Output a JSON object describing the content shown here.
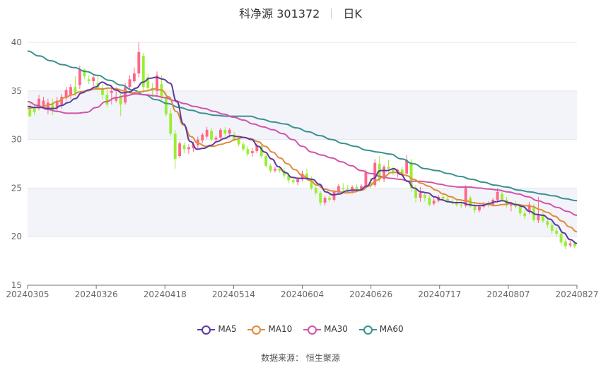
{
  "header": {
    "stock": "科净源 301372",
    "period": "日K"
  },
  "source": "数据来源： 恒生聚源",
  "colors": {
    "up": "#ff6688",
    "down": "#99ee33",
    "ma5": "#5c3b9e",
    "ma10": "#e08a3c",
    "ma30": "#d055a8",
    "ma60": "#3a9190",
    "band": "#f3f4fa",
    "grid": "#e4e6ee"
  },
  "chart_data": {
    "type": "candlestick",
    "ylim": [
      15,
      40
    ],
    "yticks": [
      "40",
      "35",
      "30",
      "25",
      "20",
      "15"
    ],
    "xlabels": [
      "20240305",
      "20240326",
      "20240418",
      "20240514",
      "20240604",
      "20240626",
      "20240717",
      "20240807",
      "20240827"
    ],
    "legend": [
      "MA5",
      "MA10",
      "MA30",
      "MA60"
    ],
    "grid": true,
    "candles_ohlc": [
      [
        33.1,
        33.8,
        32.3,
        32.4
      ],
      [
        33.2,
        33.6,
        32.5,
        32.8
      ],
      [
        33.4,
        34.6,
        33.0,
        34.2
      ],
      [
        33.5,
        34.4,
        33.2,
        34.0
      ],
      [
        33.2,
        34.2,
        32.6,
        33.8
      ],
      [
        33.6,
        34.2,
        32.5,
        33.0
      ],
      [
        33.3,
        34.4,
        32.8,
        34.0
      ],
      [
        33.6,
        34.7,
        33.2,
        34.4
      ],
      [
        34.3,
        35.4,
        34.0,
        35.1
      ],
      [
        34.6,
        35.7,
        34.2,
        35.4
      ],
      [
        35.4,
        36.5,
        34.5,
        34.8
      ],
      [
        35.6,
        37.6,
        35.2,
        37.2
      ],
      [
        37.2,
        37.3,
        36.2,
        36.5
      ],
      [
        36.2,
        36.6,
        35.7,
        36.0
      ],
      [
        36.0,
        36.6,
        35.5,
        36.4
      ],
      [
        35.8,
        36.5,
        35.1,
        35.3
      ],
      [
        35.3,
        35.7,
        34.1,
        34.6
      ],
      [
        34.6,
        35.4,
        33.3,
        33.6
      ],
      [
        34.8,
        35.6,
        33.6,
        35.0
      ],
      [
        34.0,
        35.4,
        33.8,
        34.4
      ],
      [
        34.5,
        34.8,
        32.4,
        33.6
      ],
      [
        33.8,
        35.8,
        33.6,
        35.4
      ],
      [
        35.4,
        36.6,
        35.1,
        36.2
      ],
      [
        36.0,
        37.4,
        35.8,
        36.8
      ],
      [
        36.8,
        40.0,
        36.4,
        39.0
      ],
      [
        38.6,
        38.9,
        34.8,
        35.4
      ],
      [
        36.4,
        36.8,
        35.1,
        35.3
      ],
      [
        35.3,
        35.8,
        34.4,
        35.0
      ],
      [
        35.0,
        37.0,
        34.6,
        36.6
      ],
      [
        35.7,
        36.6,
        34.1,
        34.4
      ],
      [
        34.4,
        34.9,
        32.4,
        32.6
      ],
      [
        32.7,
        33.2,
        30.3,
        30.6
      ],
      [
        30.6,
        31.0,
        27.0,
        28.0
      ],
      [
        28.3,
        29.8,
        28.1,
        29.6
      ],
      [
        29.4,
        29.7,
        28.6,
        29.0
      ],
      [
        29.0,
        29.5,
        28.5,
        29.2
      ],
      [
        29.1,
        29.8,
        28.7,
        29.5
      ],
      [
        29.4,
        30.3,
        29.1,
        30.0
      ],
      [
        29.9,
        30.7,
        29.6,
        30.5
      ],
      [
        30.3,
        31.3,
        30.1,
        31.0
      ],
      [
        30.9,
        31.2,
        29.8,
        30.0
      ],
      [
        30.0,
        30.4,
        29.6,
        30.2
      ],
      [
        30.2,
        31.2,
        30.0,
        31.0
      ],
      [
        31.0,
        31.3,
        30.2,
        30.6
      ],
      [
        30.6,
        31.2,
        30.2,
        31.0
      ],
      [
        30.5,
        30.8,
        29.8,
        30.0
      ],
      [
        30.0,
        30.3,
        29.3,
        29.5
      ],
      [
        29.5,
        29.8,
        28.8,
        29.0
      ],
      [
        29.0,
        29.3,
        28.3,
        28.5
      ],
      [
        28.6,
        29.1,
        28.2,
        28.8
      ],
      [
        28.8,
        29.6,
        28.6,
        29.4
      ],
      [
        29.3,
        29.6,
        28.1,
        28.3
      ],
      [
        28.3,
        28.5,
        27.1,
        27.3
      ],
      [
        27.3,
        27.5,
        26.6,
        26.8
      ],
      [
        26.8,
        27.2,
        26.6,
        27.0
      ],
      [
        27.0,
        27.3,
        26.6,
        26.8
      ],
      [
        26.8,
        27.1,
        26.0,
        26.3
      ],
      [
        26.3,
        26.6,
        25.5,
        25.8
      ],
      [
        25.8,
        26.2,
        25.4,
        25.6
      ],
      [
        25.6,
        26.1,
        25.3,
        25.9
      ],
      [
        25.9,
        26.8,
        25.7,
        26.5
      ],
      [
        26.5,
        27.0,
        25.8,
        26.0
      ],
      [
        26.0,
        26.2,
        24.8,
        25.0
      ],
      [
        25.0,
        25.2,
        24.3,
        24.5
      ],
      [
        24.5,
        24.7,
        23.2,
        23.5
      ],
      [
        23.5,
        24.2,
        23.2,
        24.0
      ],
      [
        24.0,
        24.3,
        23.6,
        23.8
      ],
      [
        23.8,
        24.8,
        23.6,
        24.6
      ],
      [
        24.6,
        25.4,
        24.3,
        25.2
      ],
      [
        25.0,
        25.5,
        24.6,
        24.9
      ],
      [
        24.9,
        25.3,
        24.5,
        24.7
      ],
      [
        24.7,
        25.3,
        24.4,
        25.1
      ],
      [
        25.1,
        25.4,
        24.7,
        24.9
      ],
      [
        24.9,
        25.4,
        24.7,
        25.2
      ],
      [
        25.2,
        26.9,
        24.9,
        26.6
      ],
      [
        25.6,
        26.0,
        25.0,
        25.3
      ],
      [
        25.3,
        28.0,
        25.1,
        27.6
      ],
      [
        27.5,
        28.3,
        25.6,
        25.9
      ],
      [
        25.9,
        27.4,
        25.6,
        27.2
      ],
      [
        27.2,
        27.9,
        26.6,
        27.0
      ],
      [
        27.0,
        27.2,
        26.3,
        26.6
      ],
      [
        26.6,
        27.0,
        26.1,
        26.9
      ],
      [
        26.9,
        27.2,
        26.3,
        26.5
      ],
      [
        26.5,
        28.4,
        26.2,
        27.9
      ],
      [
        27.7,
        28.0,
        24.6,
        25.0
      ],
      [
        25.0,
        25.3,
        23.5,
        24.0
      ],
      [
        24.0,
        25.1,
        23.6,
        24.5
      ],
      [
        24.3,
        24.6,
        23.6,
        24.0
      ],
      [
        24.0,
        24.3,
        23.1,
        23.3
      ],
      [
        23.4,
        24.1,
        23.2,
        23.7
      ],
      [
        23.7,
        24.3,
        23.5,
        24.1
      ],
      [
        24.1,
        24.4,
        23.7,
        23.9
      ],
      [
        23.9,
        24.2,
        23.5,
        23.6
      ],
      [
        23.6,
        23.9,
        23.3,
        23.5
      ],
      [
        23.5,
        23.8,
        23.1,
        23.3
      ],
      [
        23.3,
        23.6,
        22.9,
        23.2
      ],
      [
        23.2,
        25.3,
        23.0,
        25.0
      ],
      [
        24.0,
        24.2,
        22.9,
        23.1
      ],
      [
        23.1,
        23.4,
        22.4,
        22.7
      ],
      [
        22.7,
        23.3,
        22.5,
        23.1
      ],
      [
        23.1,
        23.6,
        22.9,
        23.4
      ],
      [
        23.4,
        23.7,
        23.0,
        23.3
      ],
      [
        23.3,
        24.0,
        23.1,
        23.8
      ],
      [
        23.8,
        25.0,
        23.5,
        24.6
      ],
      [
        24.4,
        24.7,
        23.6,
        23.8
      ],
      [
        23.8,
        24.1,
        23.0,
        23.2
      ],
      [
        23.2,
        23.6,
        22.6,
        23.4
      ],
      [
        23.4,
        23.7,
        22.9,
        23.1
      ],
      [
        23.1,
        23.3,
        22.1,
        22.4
      ],
      [
        22.4,
        22.8,
        21.8,
        22.1
      ],
      [
        22.6,
        23.6,
        22.3,
        23.3
      ],
      [
        23.0,
        23.4,
        21.5,
        21.7
      ],
      [
        21.7,
        24.1,
        21.4,
        22.3
      ],
      [
        22.3,
        22.6,
        21.4,
        21.6
      ],
      [
        21.6,
        22.0,
        20.9,
        21.2
      ],
      [
        21.2,
        21.5,
        20.3,
        20.6
      ],
      [
        20.6,
        21.0,
        20.0,
        20.3
      ],
      [
        20.3,
        20.6,
        19.1,
        19.4
      ],
      [
        19.5,
        19.8,
        18.7,
        19.0
      ],
      [
        19.1,
        19.6,
        18.9,
        19.3
      ],
      [
        19.3,
        19.6,
        18.8,
        19.0
      ]
    ],
    "ma5": [
      33.4,
      33.3,
      33.3,
      33.2,
      33.2,
      33.5,
      33.8,
      34.2,
      34.8,
      35.1,
      35.4,
      35.9,
      35.6,
      35.1,
      34.8,
      34.9,
      35.3,
      35.9,
      36.3,
      36.4,
      36.2,
      35.8,
      33.9,
      31.6,
      29.8,
      29.0,
      29.1,
      29.4,
      29.8,
      30.1,
      30.4,
      30.3,
      30.2,
      30.0,
      29.3,
      28.7,
      28.0,
      27.2,
      26.6,
      26.1,
      26.0,
      26.0,
      25.9,
      25.4,
      24.6,
      24.3,
      24.4,
      24.7,
      24.8,
      24.8,
      25.2,
      26.0,
      26.8,
      26.8,
      27.0,
      26.4,
      25.7,
      25.0,
      24.6,
      24.5,
      24.1,
      23.8,
      23.6,
      23.5,
      23.5,
      23.3,
      23.2,
      23.2,
      23.4,
      23.6,
      23.7,
      23.5,
      23.3,
      23.1,
      22.6,
      22.3,
      22.2,
      21.8,
      21.2,
      20.4,
      19.7,
      19.3
    ],
    "ma10": [
      33.2,
      33.3,
      33.4,
      33.6,
      33.9,
      34.3,
      34.6,
      34.9,
      35.0,
      35.2,
      35.2,
      35.3,
      35.2,
      35.0,
      34.8,
      34.9,
      35.0,
      35.2,
      35.1,
      34.4,
      32.9,
      31.5,
      30.3,
      29.6,
      29.3,
      29.3,
      29.5,
      29.7,
      30.0,
      30.2,
      30.1,
      29.8,
      29.3,
      28.7,
      28.1,
      27.5,
      26.9,
      26.3,
      25.8,
      25.3,
      24.9,
      24.7,
      24.6,
      24.5,
      24.6,
      24.8,
      25.2,
      25.8,
      26.2,
      26.6,
      26.6,
      26.3,
      25.9,
      25.5,
      25.2,
      24.8,
      24.4,
      24.1,
      23.8,
      23.7,
      23.5,
      23.4,
      23.3,
      23.2,
      23.3,
      23.4,
      23.3,
      23.2,
      23.1,
      22.8,
      22.5,
      22.1,
      21.6,
      21.0,
      20.5
    ],
    "ma30": [
      33.9,
      33.5,
      33.1,
      32.9,
      32.7,
      32.7,
      32.8,
      33.3,
      33.9,
      34.3,
      34.5,
      34.7,
      34.6,
      34.5,
      34.3,
      34.0,
      33.7,
      33.4,
      33.2,
      32.9,
      32.6,
      32.3,
      32.0,
      31.6,
      31.3,
      31.0,
      30.6,
      30.0,
      29.3,
      28.7,
      28.4,
      28.1,
      27.7,
      27.3,
      26.8,
      26.5,
      26.2,
      26.0,
      25.9,
      25.7,
      25.7,
      25.6,
      25.4,
      25.2,
      25.1,
      25.1,
      25.0,
      24.9,
      24.8,
      24.6,
      24.4,
      24.1,
      23.7,
      23.4,
      23.0,
      22.6,
      22.2
    ],
    "ma60": [
      39.1,
      38.6,
      38.1,
      37.7,
      37.4,
      37.0,
      36.6,
      36.1,
      35.6,
      35.1,
      34.6,
      34.1,
      33.7,
      33.3,
      33.0,
      32.7,
      32.5,
      32.4,
      32.4,
      32.4,
      32.1,
      31.8,
      31.6,
      31.2,
      30.8,
      30.4,
      30.0,
      29.6,
      29.3,
      28.9,
      28.7,
      28.5,
      28.0,
      27.5,
      27.0,
      26.8,
      26.5,
      26.2,
      25.9,
      25.6,
      25.3,
      25.1,
      24.8,
      24.6,
      24.4,
      24.2,
      23.9,
      23.7
    ]
  }
}
